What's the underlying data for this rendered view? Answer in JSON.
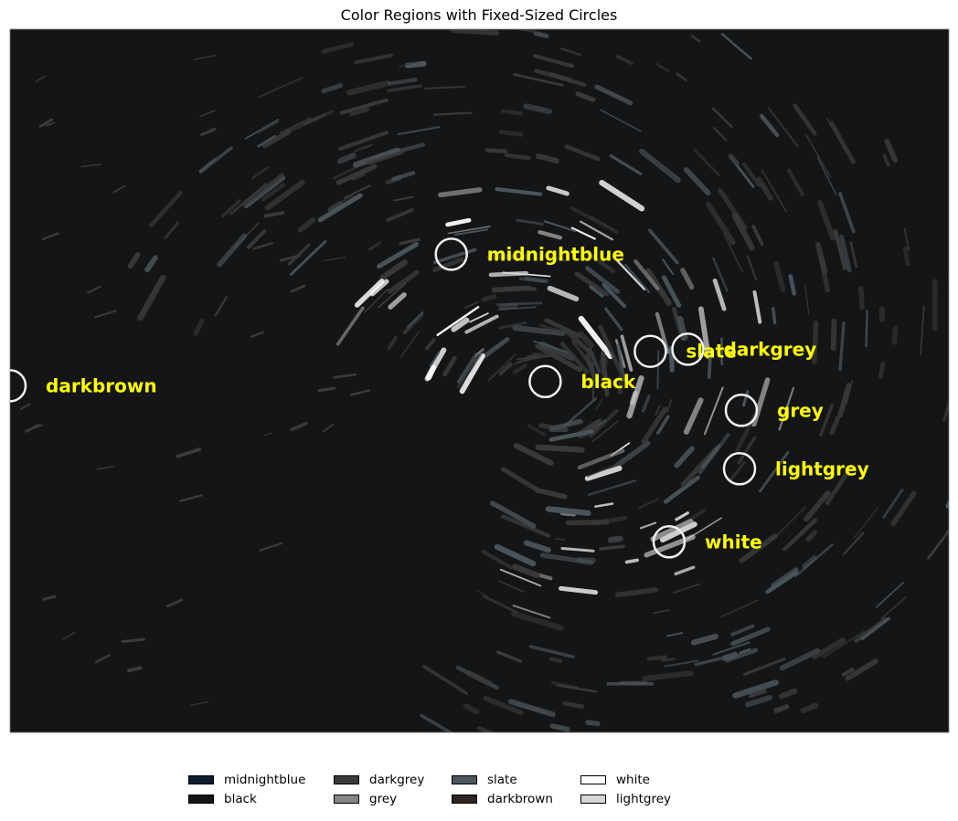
{
  "chart_data": {
    "type": "scatter",
    "title": "Color Regions with Fixed-Sized Circles",
    "xlabel": "",
    "ylabel": "",
    "axes": "off",
    "grid": false,
    "legend_placement": "bottom-center",
    "background_color": "#141516",
    "colors": {
      "midnightblue": "#0d1e2e",
      "black": "#141516",
      "darkgrey": "#3a3a3a",
      "grey": "#858585",
      "slate": "#4b565d",
      "darkbrown": "#2d241d",
      "white": "#ffffff",
      "lightgrey": "#d6d6d6",
      "label": "#ffff00",
      "circle": "#f0f0f0"
    },
    "legend": [
      {
        "name": "midnightblue",
        "color": "#0d1e2e"
      },
      {
        "name": "black",
        "color": "#141516"
      },
      {
        "name": "darkgrey",
        "color": "#3a3a3a"
      },
      {
        "name": "grey",
        "color": "#858585"
      },
      {
        "name": "slate",
        "color": "#4b565d"
      },
      {
        "name": "darkbrown",
        "color": "#2d241d"
      },
      {
        "name": "white",
        "color": "#ffffff"
      },
      {
        "name": "lightgrey",
        "color": "#d6d6d6"
      }
    ],
    "annotations": [
      {
        "label": "midnightblue",
        "x": 0.47,
        "y": 0.32
      },
      {
        "label": "black",
        "x": 0.57,
        "y": 0.501
      },
      {
        "label": "slate",
        "x": 0.682,
        "y": 0.458
      },
      {
        "label": "darkgrey",
        "x": 0.722,
        "y": 0.455
      },
      {
        "label": "grey",
        "x": 0.779,
        "y": 0.542
      },
      {
        "label": "lightgrey",
        "x": 0.777,
        "y": 0.625
      },
      {
        "label": "white",
        "x": 0.702,
        "y": 0.729
      },
      {
        "label": "darkbrown",
        "x": 0.0,
        "y": 0.507
      }
    ]
  }
}
